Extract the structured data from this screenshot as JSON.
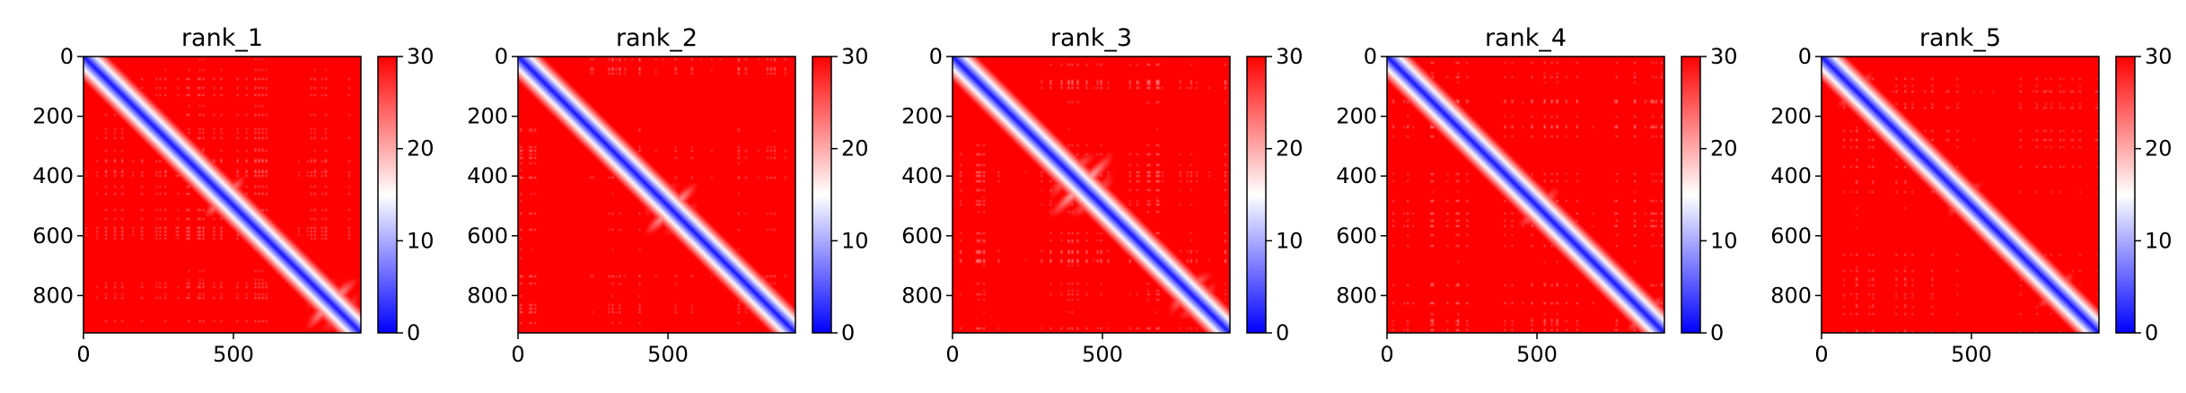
{
  "chart_data": [
    {
      "type": "heatmap",
      "title": "rank_1",
      "matrix_size": 925,
      "xticks": [
        "0",
        "500"
      ],
      "yticks": [
        "0",
        "200",
        "400",
        "600",
        "800"
      ],
      "colorbar": {
        "min": 0,
        "max": 30,
        "ticks": [
          "0",
          "10",
          "20",
          "30"
        ]
      },
      "colormap": [
        "#0000ff",
        "#ffffff",
        "#ff0000"
      ],
      "features": [
        {
          "center": 470,
          "halfwidth": 70
        },
        {
          "center": 830,
          "halfwidth": 90
        },
        {
          "center": 80,
          "halfwidth": 40
        }
      ]
    },
    {
      "type": "heatmap",
      "title": "rank_2",
      "matrix_size": 925,
      "xticks": [
        "0",
        "500"
      ],
      "yticks": [
        "0",
        "200",
        "400",
        "600",
        "800"
      ],
      "colorbar": {
        "min": 0,
        "max": 30,
        "ticks": [
          "0",
          "10",
          "20",
          "30"
        ]
      },
      "colormap": [
        "#0000ff",
        "#ffffff",
        "#ff0000"
      ],
      "features": [
        {
          "center": 510,
          "halfwidth": 90
        },
        {
          "center": 780,
          "halfwidth": 50
        },
        {
          "center": 90,
          "halfwidth": 40
        }
      ]
    },
    {
      "type": "heatmap",
      "title": "rank_3",
      "matrix_size": 925,
      "xticks": [
        "0",
        "500"
      ],
      "yticks": [
        "0",
        "200",
        "400",
        "600",
        "800"
      ],
      "colorbar": {
        "min": 0,
        "max": 30,
        "ticks": [
          "0",
          "10",
          "20",
          "30"
        ]
      },
      "colormap": [
        "#0000ff",
        "#ffffff",
        "#ff0000"
      ],
      "features": [
        {
          "center": 430,
          "halfwidth": 110
        },
        {
          "center": 800,
          "halfwidth": 80
        }
      ]
    },
    {
      "type": "heatmap",
      "title": "rank_4",
      "matrix_size": 925,
      "xticks": [
        "0",
        "500"
      ],
      "yticks": [
        "0",
        "200",
        "400",
        "600",
        "800"
      ],
      "colorbar": {
        "min": 0,
        "max": 30,
        "ticks": [
          "0",
          "10",
          "20",
          "30"
        ]
      },
      "colormap": [
        "#0000ff",
        "#ffffff",
        "#ff0000"
      ],
      "features": [
        {
          "center": 500,
          "halfwidth": 70
        },
        {
          "center": 860,
          "halfwidth": 60
        }
      ]
    },
    {
      "type": "heatmap",
      "title": "rank_5",
      "matrix_size": 925,
      "xticks": [
        "0",
        "500"
      ],
      "yticks": [
        "0",
        "200",
        "400",
        "600",
        "800"
      ],
      "colorbar": {
        "min": 0,
        "max": 30,
        "ticks": [
          "0",
          "10",
          "20",
          "30"
        ]
      },
      "colormap": [
        "#0000ff",
        "#ffffff",
        "#ff0000"
      ],
      "features": [
        {
          "center": 110,
          "halfwidth": 60
        },
        {
          "center": 480,
          "halfwidth": 60
        },
        {
          "center": 780,
          "halfwidth": 60
        }
      ]
    }
  ]
}
